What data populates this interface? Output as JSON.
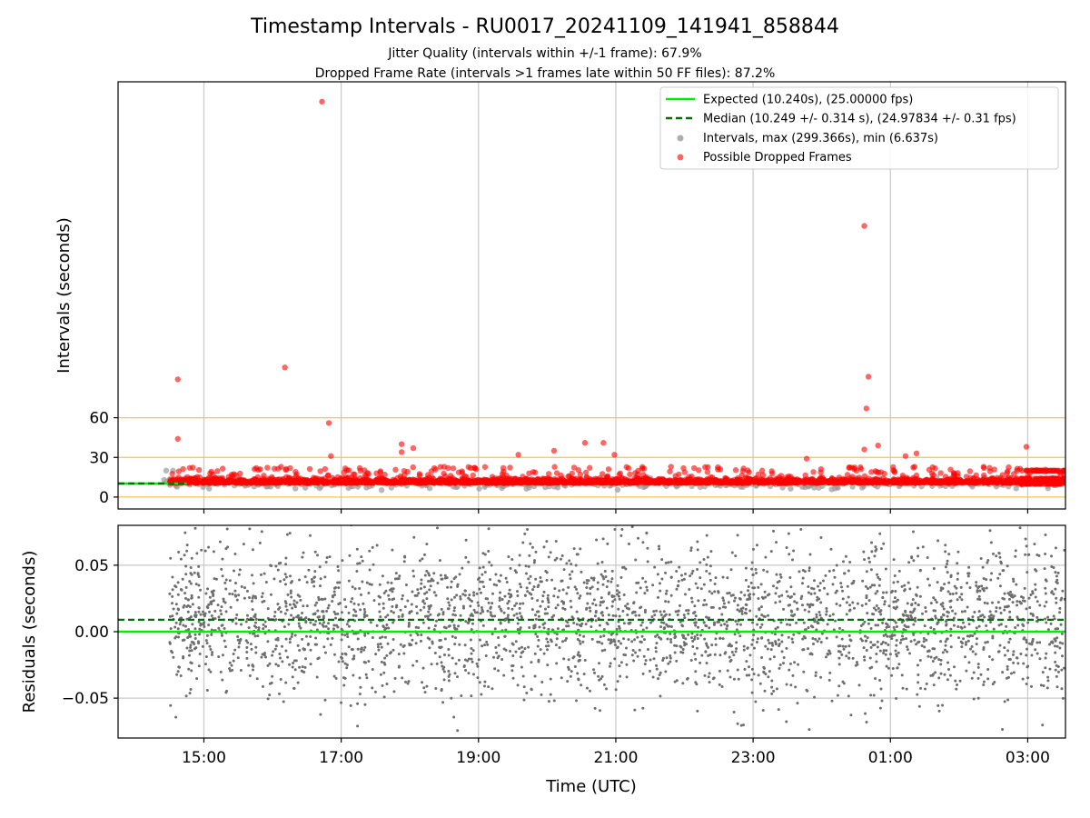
{
  "title": "Timestamp Intervals - RU0017_20241109_141941_858844",
  "subtitle_1": "Jitter Quality (intervals within +/-1 frame): 67.9%",
  "subtitle_2": "Dropped Frame Rate (intervals >1 frames late within 50 FF files): 87.2%",
  "colors": {
    "expected": "#00ee00",
    "median": "#007000",
    "interval_points": "#9a9a9a",
    "dropped_points": "#ff0000",
    "threshold_lines": "#ffc04d",
    "residual_points": "#6e6e6e",
    "grid": "#c8c8c8"
  },
  "chart_data": [
    {
      "type": "scatter",
      "panel": "top",
      "ylabel": "Intervals (seconds)",
      "xlabel": "",
      "x_ticks": [
        "15:00",
        "17:00",
        "19:00",
        "21:00",
        "23:00",
        "01:00",
        "03:00"
      ],
      "x_tick_hours": [
        15,
        17,
        19,
        21,
        23,
        25,
        27
      ],
      "x_range_hours": [
        13.75,
        27.55
      ],
      "y_ticks": [
        0,
        30,
        60
      ],
      "ylim": [
        -9,
        314
      ],
      "threshold_lines": [
        0,
        30,
        60
      ],
      "expected_interval": 10.24,
      "median_interval": 10.249,
      "legend_position": "upper right",
      "legend": [
        {
          "label": "Expected (10.240s), (25.00000 fps)",
          "style": "solid-line"
        },
        {
          "label": "Median (10.249 +/- 0.314 s), (24.97834 +/- 0.31 fps)",
          "style": "dashed-line"
        },
        {
          "label": "Intervals, max (299.366s), min (6.637s)",
          "style": "gray-dot"
        },
        {
          "label": "Possible Dropped Frames",
          "style": "red-dot"
        }
      ],
      "dropped_frame_outliers": [
        {
          "time_h": 14.62,
          "y": 89
        },
        {
          "time_h": 14.62,
          "y": 44
        },
        {
          "time_h": 16.18,
          "y": 98
        },
        {
          "time_h": 16.72,
          "y": 299
        },
        {
          "time_h": 16.82,
          "y": 56
        },
        {
          "time_h": 16.85,
          "y": 31
        },
        {
          "time_h": 17.88,
          "y": 40
        },
        {
          "time_h": 17.88,
          "y": 34
        },
        {
          "time_h": 18.05,
          "y": 37
        },
        {
          "time_h": 19.58,
          "y": 32
        },
        {
          "time_h": 20.1,
          "y": 35
        },
        {
          "time_h": 20.55,
          "y": 41
        },
        {
          "time_h": 20.82,
          "y": 41
        },
        {
          "time_h": 20.98,
          "y": 32
        },
        {
          "time_h": 23.78,
          "y": 29
        },
        {
          "time_h": 24.82,
          "y": 39
        },
        {
          "time_h": 24.62,
          "y": 205
        },
        {
          "time_h": 24.68,
          "y": 91
        },
        {
          "time_h": 24.65,
          "y": 67
        },
        {
          "time_h": 24.62,
          "y": 36
        },
        {
          "time_h": 25.22,
          "y": 31
        },
        {
          "time_h": 25.38,
          "y": 33
        },
        {
          "time_h": 26.98,
          "y": 38
        }
      ],
      "series_time_range_hours": [
        14.45,
        27.55
      ]
    },
    {
      "type": "scatter",
      "panel": "bottom",
      "ylabel": "Residuals (seconds)",
      "xlabel": "Time (UTC)",
      "x_ticks": [
        "15:00",
        "17:00",
        "19:00",
        "21:00",
        "23:00",
        "01:00",
        "03:00"
      ],
      "y_ticks": [
        "0.05",
        "0.00",
        "−0.05"
      ],
      "y_tick_values": [
        0.05,
        0.0,
        -0.05
      ],
      "ylim": [
        -0.08,
        0.08
      ],
      "expected_residual": 0.0,
      "median_residual": 0.009
    }
  ]
}
